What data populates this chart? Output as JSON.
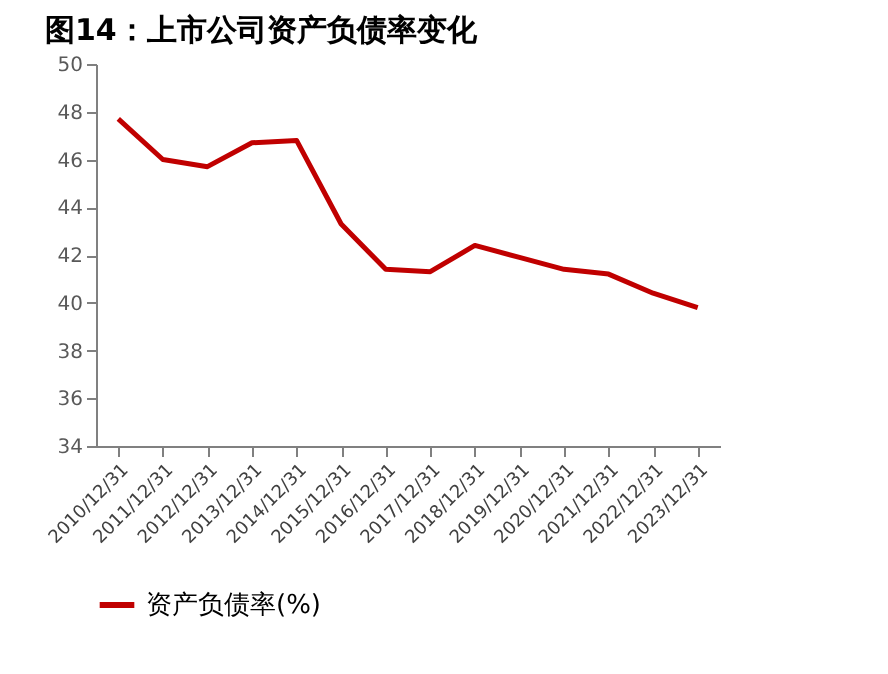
{
  "chart_data": {
    "type": "line",
    "title": "图14：上市公司资产负债率变化",
    "categories": [
      "2010/12/31",
      "2011/12/31",
      "2012/12/31",
      "2013/12/31",
      "2014/12/31",
      "2015/12/31",
      "2016/12/31",
      "2017/12/31",
      "2018/12/31",
      "2019/12/31",
      "2020/12/31",
      "2021/12/31",
      "2022/12/31",
      "2023/12/31"
    ],
    "series": [
      {
        "name": "资产负债率(%)",
        "color": "#c00000",
        "values": [
          47.7,
          46.0,
          45.7,
          46.7,
          46.8,
          43.3,
          41.4,
          41.3,
          42.4,
          41.9,
          41.4,
          41.2,
          40.4,
          39.8
        ]
      }
    ],
    "ylim": [
      34,
      50
    ],
    "yticks": [
      34,
      36,
      38,
      40,
      42,
      44,
      46,
      48,
      50
    ],
    "grid": false,
    "legend": "bottom",
    "marker": "none",
    "line_style": "solid"
  }
}
